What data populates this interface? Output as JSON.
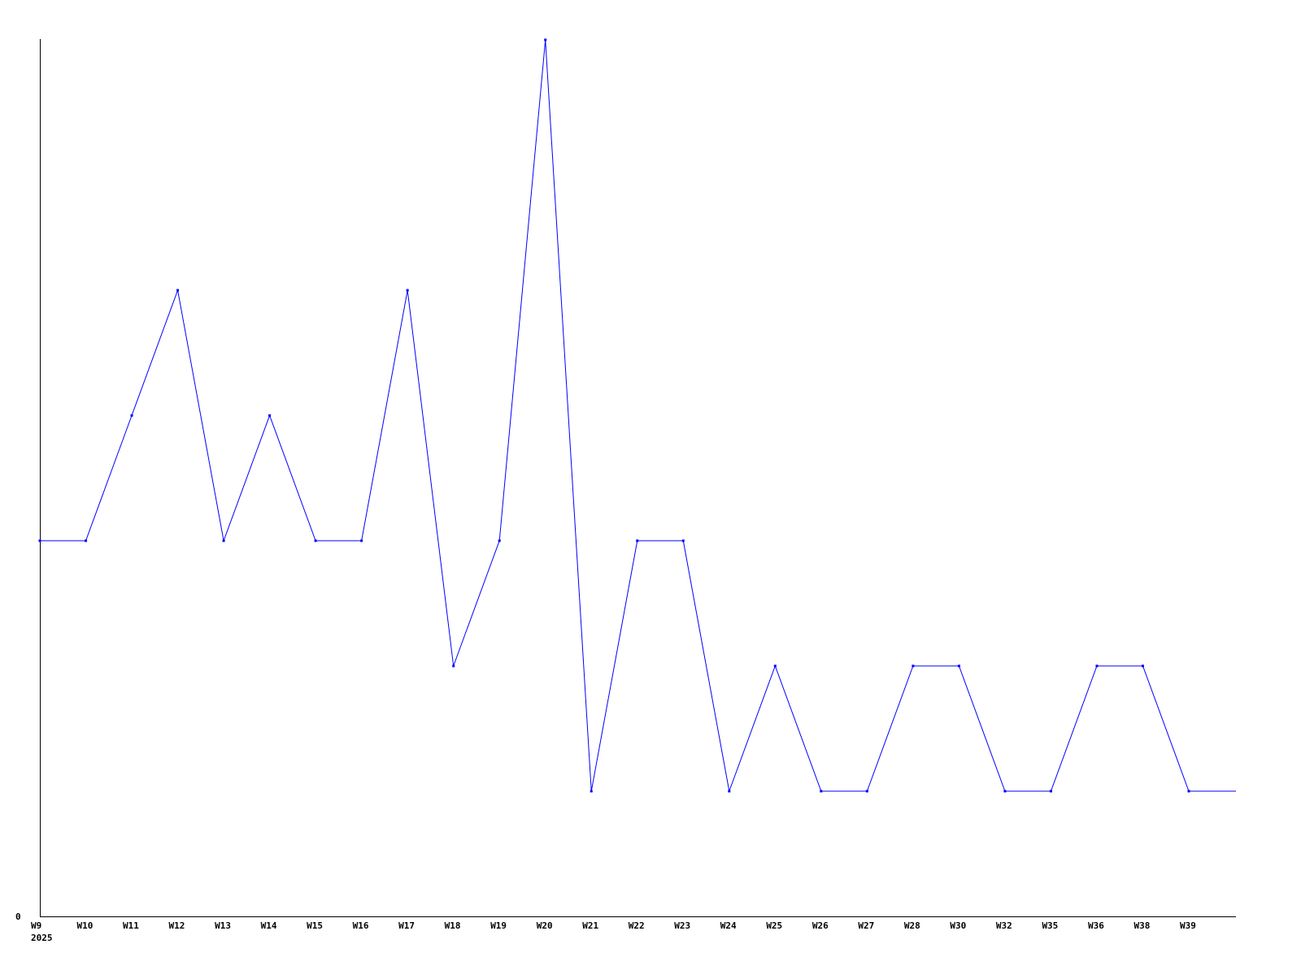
{
  "chart_data": {
    "type": "line",
    "title": "",
    "xlabel": "",
    "ylabel": "",
    "year_label": "2025",
    "y_tick_labels": [
      "0"
    ],
    "ylim": [
      0,
      7
    ],
    "grid": false,
    "line_color": "#0000ff",
    "categories": [
      "W9",
      "W10",
      "W11",
      "W12",
      "W13",
      "W14",
      "W15",
      "W16",
      "W17",
      "W18",
      "W19",
      "W20",
      "W21",
      "W22",
      "W23",
      "W24",
      "W25",
      "W26",
      "W27",
      "W28",
      "W30",
      "W32",
      "W35",
      "W36",
      "W38",
      "W39"
    ],
    "values": [
      3,
      3,
      4,
      5,
      3,
      4,
      3,
      3,
      5,
      2,
      3,
      7,
      1,
      3,
      3,
      1,
      2,
      1,
      1,
      2,
      2,
      1,
      1,
      2,
      2,
      1
    ],
    "trailing_value": 1
  }
}
